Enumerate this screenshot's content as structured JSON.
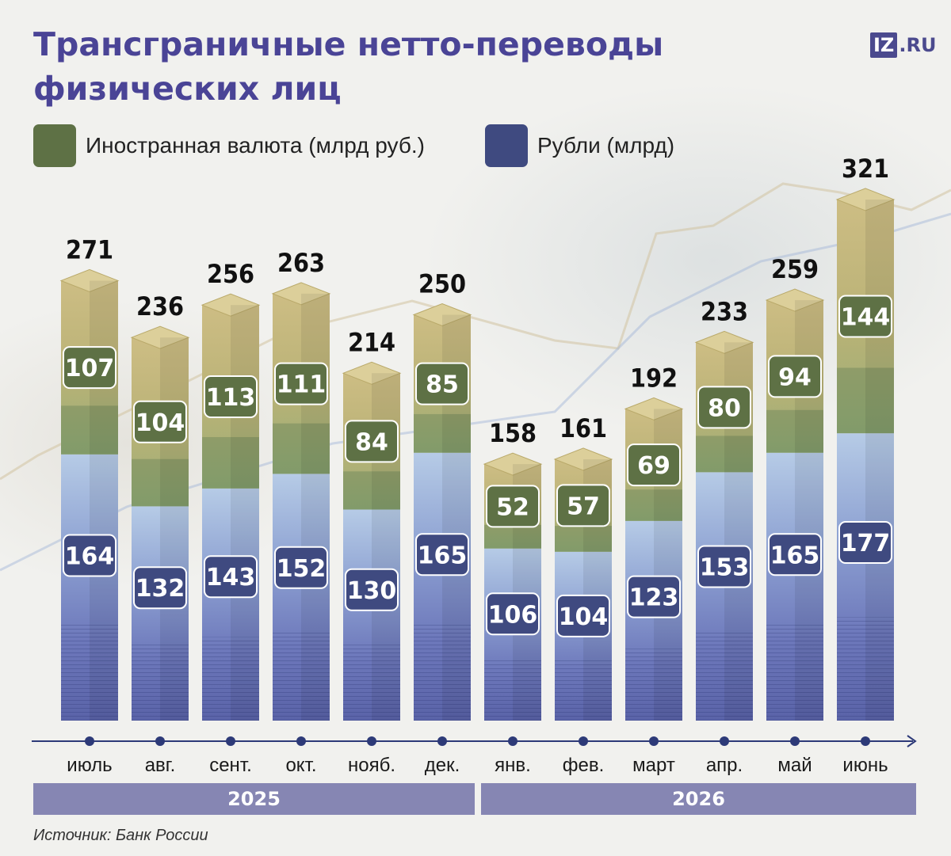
{
  "title": "Трансграничные нетто-переводы физических лиц",
  "logo": {
    "box": "IZ",
    "suffix": ".RU"
  },
  "legend": [
    {
      "label": "Иностранная валюта (млрд руб.)",
      "color": "#5e7145"
    },
    {
      "label": "Рубли (млрд)",
      "color": "#3f4a80"
    }
  ],
  "years": [
    "2025",
    "2026"
  ],
  "source": "Источник: Банк России",
  "chart_data": {
    "type": "bar",
    "stacked": true,
    "categories": [
      "июль",
      "авг.",
      "сент.",
      "окт.",
      "нояб.",
      "дек.",
      "янв.",
      "фев.",
      "март",
      "апр.",
      "май",
      "июнь"
    ],
    "series": [
      {
        "name": "Рубли (млрд)",
        "values": [
          164,
          132,
          143,
          152,
          130,
          165,
          106,
          104,
          123,
          153,
          165,
          177
        ],
        "color": "#3f4a80"
      },
      {
        "name": "Иностранная валюта (млрд руб.)",
        "values": [
          107,
          104,
          113,
          111,
          84,
          85,
          52,
          57,
          69,
          80,
          94,
          144
        ],
        "color": "#5e7145"
      }
    ],
    "totals": [
      271,
      236,
      256,
      263,
      214,
      250,
      158,
      161,
      192,
      233,
      259,
      321
    ],
    "year_groups": [
      {
        "label": "2025",
        "from": 0,
        "to": 5
      },
      {
        "label": "2026",
        "from": 6,
        "to": 11
      }
    ],
    "ylim": [
      0,
      321
    ],
    "grid": false,
    "legend_position": "top-left"
  }
}
